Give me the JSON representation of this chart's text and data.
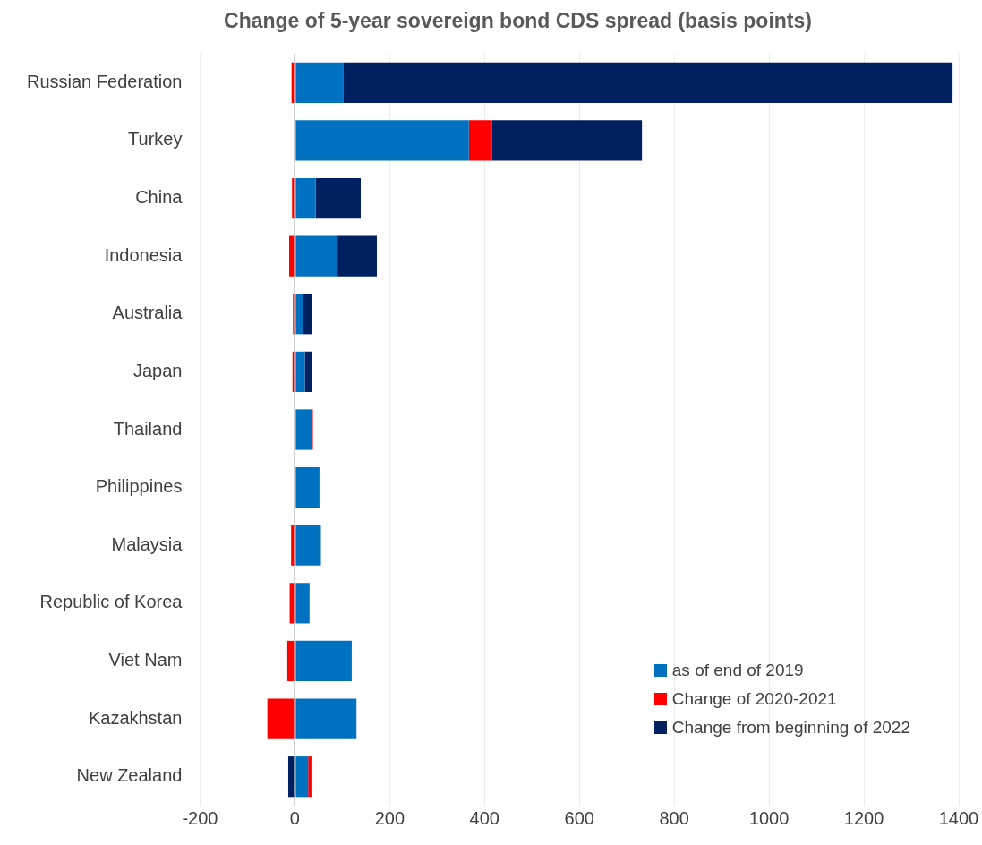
{
  "chart_data": {
    "type": "bar",
    "orientation": "horizontal",
    "stacked": true,
    "title": "Change of 5-year sovereign bond CDS spread (basis points)",
    "categories": [
      "Russian Federation",
      "Turkey",
      "China",
      "Indonesia",
      "Australia",
      "Japan",
      "Thailand",
      "Philippines",
      "Malaysia",
      "Republic of Korea",
      "Viet Nam",
      "Kazakhstan",
      "New Zealand"
    ],
    "series": [
      {
        "name": "as of end of 2019",
        "color": "#0070c0",
        "values": [
          103,
          367,
          44,
          90,
          17,
          21,
          36,
          52,
          55,
          31,
          120,
          130,
          28
        ]
      },
      {
        "name": "Change of 2020-2021",
        "color": "#ff0000",
        "values": [
          -7,
          49,
          -6,
          -12,
          -4,
          -5,
          2,
          null,
          -8,
          -11,
          -16,
          -58,
          7
        ]
      },
      {
        "name": "Change from beginning of 2022",
        "color": "#002060",
        "values": [
          1284,
          316,
          95,
          83,
          19,
          15,
          null,
          null,
          null,
          null,
          null,
          null,
          -14
        ]
      }
    ],
    "xlim": [
      -200,
      1400
    ],
    "xticks": [
      -200,
      0,
      200,
      400,
      600,
      800,
      1000,
      1200,
      1400
    ],
    "grid": "x",
    "legend": "bottom right"
  }
}
